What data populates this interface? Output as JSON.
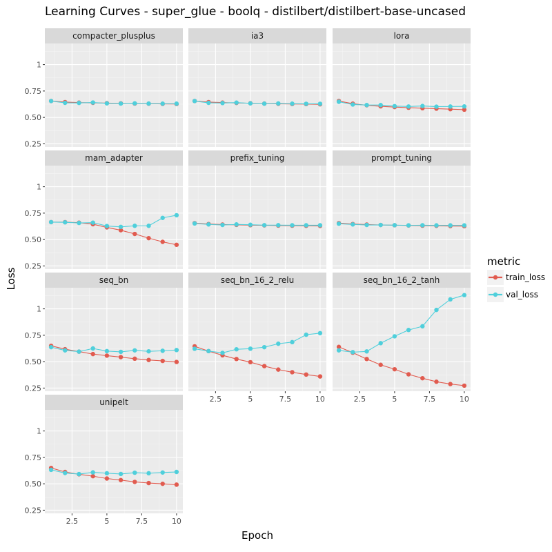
{
  "chart_data": {
    "type": "line",
    "title": "Learning Curves - super_glue - boolq - distilbert/distilbert-base-uncased",
    "xlabel": "Epoch",
    "ylabel": "Loss",
    "xlim": [
      0.55,
      10.45
    ],
    "ylim": [
      0.22,
      1.2
    ],
    "x_ticks": [
      2.5,
      5,
      7.5,
      10
    ],
    "x_tick_labels": [
      "2.5",
      "5",
      "7.5",
      "10"
    ],
    "y_ticks": [
      0.25,
      0.5,
      0.75,
      1
    ],
    "y_tick_labels": [
      "0.25",
      "0.50",
      "0.75",
      "1"
    ],
    "grid": true,
    "legend": {
      "title": "metric",
      "placement": "right",
      "entries": [
        {
          "name": "train_loss",
          "color": "#E15B4F"
        },
        {
          "name": "val_loss",
          "color": "#4FCFDB"
        }
      ]
    },
    "x": [
      1,
      2,
      3,
      4,
      5,
      6,
      7,
      8,
      9,
      10
    ],
    "panels": [
      {
        "name": "compacter_plusplus",
        "series": [
          {
            "name": "train_loss",
            "values": [
              0.655,
              0.645,
              0.64,
              0.638,
              0.635,
              0.633,
              0.631,
              0.63,
              0.628,
              0.627
            ]
          },
          {
            "name": "val_loss",
            "values": [
              0.655,
              0.638,
              0.637,
              0.641,
              0.633,
              0.631,
              0.633,
              0.631,
              0.63,
              0.63
            ]
          }
        ]
      },
      {
        "name": "ia3",
        "series": [
          {
            "name": "train_loss",
            "values": [
              0.655,
              0.645,
              0.64,
              0.637,
              0.634,
              0.631,
              0.629,
              0.627,
              0.626,
              0.624
            ]
          },
          {
            "name": "val_loss",
            "values": [
              0.655,
              0.638,
              0.636,
              0.64,
              0.633,
              0.63,
              0.632,
              0.63,
              0.629,
              0.629
            ]
          }
        ]
      },
      {
        "name": "lora",
        "series": [
          {
            "name": "train_loss",
            "values": [
              0.655,
              0.63,
              0.615,
              0.605,
              0.598,
              0.592,
              0.587,
              0.583,
              0.578,
              0.573
            ]
          },
          {
            "name": "val_loss",
            "values": [
              0.648,
              0.622,
              0.617,
              0.617,
              0.607,
              0.603,
              0.608,
              0.602,
              0.603,
              0.604
            ]
          }
        ]
      },
      {
        "name": "mam_adapter",
        "series": [
          {
            "name": "train_loss",
            "values": [
              0.665,
              0.665,
              0.66,
              0.645,
              0.615,
              0.588,
              0.553,
              0.513,
              0.478,
              0.45
            ]
          },
          {
            "name": "val_loss",
            "values": [
              0.665,
              0.663,
              0.657,
              0.66,
              0.628,
              0.62,
              0.63,
              0.63,
              0.705,
              0.73
            ]
          }
        ]
      },
      {
        "name": "prefix_tuning",
        "series": [
          {
            "name": "train_loss",
            "values": [
              0.655,
              0.647,
              0.642,
              0.639,
              0.636,
              0.634,
              0.632,
              0.631,
              0.63,
              0.629
            ]
          },
          {
            "name": "val_loss",
            "values": [
              0.652,
              0.643,
              0.638,
              0.643,
              0.64,
              0.636,
              0.636,
              0.635,
              0.635,
              0.635
            ]
          }
        ]
      },
      {
        "name": "prompt_tuning",
        "series": [
          {
            "name": "train_loss",
            "values": [
              0.655,
              0.647,
              0.642,
              0.638,
              0.635,
              0.633,
              0.631,
              0.63,
              0.628,
              0.627
            ]
          },
          {
            "name": "val_loss",
            "values": [
              0.65,
              0.643,
              0.638,
              0.638,
              0.636,
              0.634,
              0.635,
              0.634,
              0.634,
              0.634
            ]
          }
        ]
      },
      {
        "name": "seq_bn",
        "series": [
          {
            "name": "train_loss",
            "values": [
              0.65,
              0.618,
              0.595,
              0.572,
              0.557,
              0.543,
              0.528,
              0.516,
              0.507,
              0.497
            ]
          },
          {
            "name": "val_loss",
            "values": [
              0.637,
              0.607,
              0.595,
              0.625,
              0.6,
              0.593,
              0.607,
              0.598,
              0.603,
              0.61
            ]
          }
        ]
      },
      {
        "name": "seq_bn_16_2_relu",
        "series": [
          {
            "name": "train_loss",
            "values": [
              0.645,
              0.6,
              0.56,
              0.525,
              0.495,
              0.458,
              0.425,
              0.4,
              0.378,
              0.36
            ]
          },
          {
            "name": "val_loss",
            "values": [
              0.622,
              0.6,
              0.583,
              0.617,
              0.623,
              0.637,
              0.67,
              0.685,
              0.755,
              0.77
            ]
          }
        ]
      },
      {
        "name": "seq_bn_16_2_tanh",
        "series": [
          {
            "name": "train_loss",
            "values": [
              0.64,
              0.585,
              0.525,
              0.47,
              0.428,
              0.38,
              0.343,
              0.31,
              0.288,
              0.273
            ]
          },
          {
            "name": "val_loss",
            "values": [
              0.607,
              0.59,
              0.597,
              0.675,
              0.74,
              0.8,
              0.835,
              0.99,
              1.09,
              1.13
            ]
          }
        ]
      },
      {
        "name": "unipelt",
        "series": [
          {
            "name": "train_loss",
            "values": [
              0.65,
              0.612,
              0.59,
              0.572,
              0.55,
              0.535,
              0.518,
              0.507,
              0.5,
              0.492
            ]
          },
          {
            "name": "val_loss",
            "values": [
              0.632,
              0.602,
              0.592,
              0.608,
              0.6,
              0.593,
              0.605,
              0.6,
              0.607,
              0.612
            ]
          }
        ]
      }
    ]
  }
}
